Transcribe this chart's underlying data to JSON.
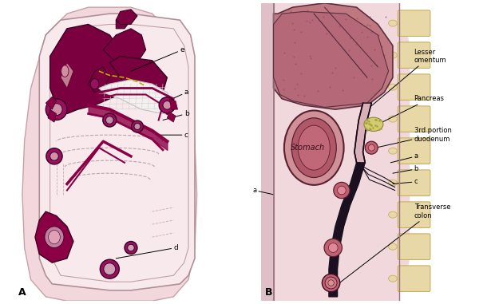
{
  "bg_outer": "#f2d8dc",
  "bg_inner": "#f8eaec",
  "body_edge": "#c8a0a8",
  "dark_maroon": "#8b0045",
  "maroon_fill": "#9a1060",
  "medium_pink": "#c07090",
  "light_pink_fill": "#e8c8d0",
  "liver_A_color": "#7a0040",
  "omentum_fill": "#f5f0f0",
  "liver_B_color": "#c07880",
  "liver_B_dot": "#8a4050",
  "stomach_outer": "#c07080",
  "stomach_inner": "#b05868",
  "pancreas_color": "#d4cc70",
  "spine_color": "#e8d8a8",
  "spine_edge": "#c8b060",
  "white": "#ffffff",
  "yellow_dashed": "#c8aa00",
  "text_stomach": "Stomach",
  "text_lesser_omentum": "Lesser\nomentum",
  "text_pancreas": "Pancreas",
  "text_duodenum": "3rd portion\nduodenum",
  "text_transverse_colon": "Transverse\ncolon",
  "label_A": "A",
  "label_B": "B"
}
